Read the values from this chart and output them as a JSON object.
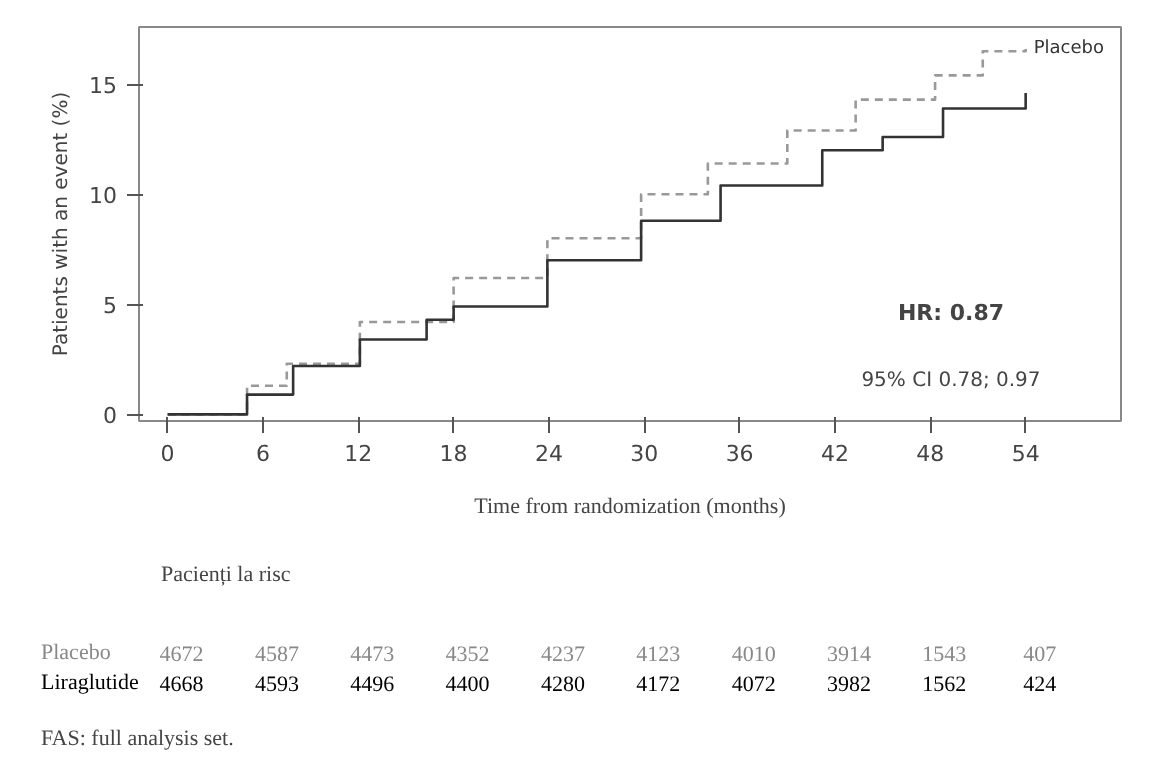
{
  "chart_data": {
    "type": "step",
    "xlabel": "Time from randomization (months)",
    "ylabel": "Patients with an event (%)",
    "x": [
      0,
      5,
      7.5,
      12.1,
      18,
      23.9,
      29.8,
      34,
      39,
      43.3,
      48.3,
      51.3,
      54
    ],
    "series": [
      {
        "name": "Placebo",
        "color": "#999999",
        "line_style": "dashed",
        "values": [
          0,
          1.3,
          2.3,
          4.2,
          6.2,
          8.0,
          10.0,
          11.4,
          12.9,
          14.3,
          15.4,
          16.5,
          16.6
        ]
      },
      {
        "color": "#333333",
        "line_style": "solid",
        "x": [
          0,
          5,
          7.9,
          12.1,
          16.3,
          18,
          23.9,
          29.8,
          34.8,
          41.2,
          45,
          48.8,
          54
        ],
        "values": [
          0,
          0.9,
          2.2,
          3.4,
          4.3,
          4.9,
          7.0,
          8.8,
          10.4,
          12.0,
          12.6,
          13.9,
          14.6
        ]
      }
    ],
    "xlim": [
      -1.8,
      60
    ],
    "ylim": [
      -0.3,
      17.6
    ],
    "xticks": [
      0,
      6,
      12,
      18,
      24,
      30,
      36,
      42,
      48,
      54
    ],
    "yticks": [
      0,
      5,
      10,
      15
    ],
    "grid": false,
    "annotations": [
      "HR: 0.87",
      "95% CI 0.78; 0.97",
      "Pacienți la risc",
      "Placebo",
      "4672",
      "4587",
      "4473",
      "4352",
      "4237",
      "4123",
      "4010",
      "3914",
      "1543",
      "407",
      "Liraglutide",
      "4668",
      "4593",
      "4496",
      "4400",
      "4280",
      "4172",
      "4072",
      "3982",
      "1562",
      "424",
      "FAS: full analysis set."
    ]
  }
}
